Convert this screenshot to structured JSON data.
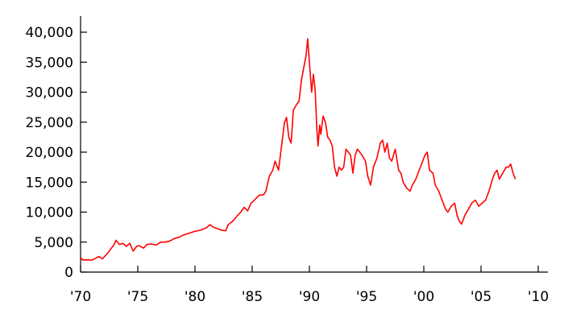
{
  "chart_data": {
    "type": "line",
    "title": "",
    "xlabel": "",
    "ylabel": "",
    "xlim": [
      1970,
      2010
    ],
    "ylim": [
      0,
      40000
    ],
    "grid": false,
    "legend": "none",
    "colors": {
      "series": "#ff0000",
      "axis": "#000000"
    },
    "x_ticks": [
      {
        "value": 1970,
        "label": "'70"
      },
      {
        "value": 1975,
        "label": "'75"
      },
      {
        "value": 1980,
        "label": "'80"
      },
      {
        "value": 1985,
        "label": "'85"
      },
      {
        "value": 1990,
        "label": "'90"
      },
      {
        "value": 1995,
        "label": "'95"
      },
      {
        "value": 2000,
        "label": "'00"
      },
      {
        "value": 2005,
        "label": "'05"
      },
      {
        "value": 2010,
        "label": "'10"
      }
    ],
    "y_ticks": [
      {
        "value": 0,
        "label": "0"
      },
      {
        "value": 5000,
        "label": "5,000"
      },
      {
        "value": 10000,
        "label": "10,000"
      },
      {
        "value": 15000,
        "label": "15,000"
      },
      {
        "value": 20000,
        "label": "20,000"
      },
      {
        "value": 25000,
        "label": "25,000"
      },
      {
        "value": 30000,
        "label": "30,000"
      },
      {
        "value": 35000,
        "label": "35,000"
      },
      {
        "value": 40000,
        "label": "40,000"
      }
    ],
    "series": [
      {
        "x": [
          1970.0,
          1970.2,
          1970.5,
          1971.0,
          1971.3,
          1971.6,
          1971.9,
          1972.3,
          1972.7,
          1972.9,
          1973.1,
          1973.4,
          1973.7,
          1974.0,
          1974.3,
          1974.6,
          1974.9,
          1975.1,
          1975.5,
          1975.8,
          1976.2,
          1976.6,
          1977.0,
          1977.4,
          1977.8,
          1978.2,
          1978.6,
          1979.0,
          1979.5,
          1980.0,
          1980.5,
          1981.0,
          1981.3,
          1981.6,
          1981.9,
          1982.3,
          1982.7,
          1982.9,
          1983.3,
          1983.7,
          1984.0,
          1984.3,
          1984.6,
          1984.9,
          1985.2,
          1985.6,
          1986.0,
          1986.2,
          1986.5,
          1986.8,
          1987.0,
          1987.3,
          1987.5,
          1987.7,
          1987.8,
          1988.0,
          1988.2,
          1988.4,
          1988.6,
          1988.9,
          1989.1,
          1989.3,
          1989.5,
          1989.7,
          1989.85,
          1990.0,
          1990.2,
          1990.35,
          1990.5,
          1990.65,
          1990.75,
          1990.9,
          1991.0,
          1991.2,
          1991.4,
          1991.6,
          1991.8,
          1992.0,
          1992.2,
          1992.4,
          1992.6,
          1992.8,
          1993.0,
          1993.2,
          1993.4,
          1993.6,
          1993.8,
          1994.0,
          1994.2,
          1994.4,
          1994.6,
          1994.9,
          1995.1,
          1995.35,
          1995.6,
          1995.9,
          1996.2,
          1996.4,
          1996.6,
          1996.8,
          1997.0,
          1997.2,
          1997.5,
          1997.8,
          1998.0,
          1998.2,
          1998.5,
          1998.8,
          1999.0,
          1999.3,
          1999.6,
          1999.9,
          2000.1,
          2000.3,
          2000.5,
          2000.8,
          2001.0,
          2001.3,
          2001.6,
          2001.9,
          2002.1,
          2002.4,
          2002.7,
          2002.9,
          2003.1,
          2003.3,
          2003.6,
          2003.9,
          2004.2,
          2004.5,
          2004.8,
          2005.1,
          2005.4,
          2005.7,
          2006.0,
          2006.2,
          2006.4,
          2006.6,
          2006.9,
          2007.2,
          2007.4,
          2007.6,
          2007.8,
          2008.0
        ],
        "y": [
          2400,
          2000,
          2050,
          2000,
          2300,
          2600,
          2200,
          3000,
          4000,
          4500,
          5300,
          4600,
          4800,
          4300,
          4800,
          3500,
          4300,
          4400,
          4000,
          4600,
          4700,
          4500,
          5000,
          5000,
          5200,
          5600,
          5800,
          6200,
          6500,
          6800,
          7000,
          7400,
          7900,
          7500,
          7300,
          7000,
          6900,
          7900,
          8500,
          9400,
          10000,
          10800,
          10200,
          11500,
          12000,
          12800,
          12900,
          13500,
          16000,
          17000,
          18500,
          17000,
          20000,
          23000,
          24800,
          25800,
          22500,
          21500,
          27000,
          28000,
          28500,
          32000,
          34000,
          36000,
          38900,
          35000,
          30000,
          33000,
          30500,
          24000,
          21000,
          24500,
          23000,
          26000,
          25000,
          22500,
          22000,
          21000,
          17500,
          16000,
          17500,
          17000,
          17500,
          20500,
          20000,
          19500,
          16500,
          19500,
          20500,
          20000,
          19500,
          18500,
          16000,
          14500,
          17500,
          19000,
          21500,
          22000,
          20000,
          21500,
          19000,
          18500,
          20500,
          17000,
          16500,
          15000,
          14000,
          13500,
          14500,
          15500,
          17000,
          18500,
          19500,
          20000,
          17000,
          16500,
          14500,
          13500,
          12000,
          10500,
          10000,
          11000,
          11500,
          9500,
          8500,
          8000,
          9500,
          10500,
          11500,
          12000,
          11000,
          11500,
          12000,
          13500,
          15500,
          16500,
          17000,
          15500,
          16500,
          17500,
          17500,
          18000,
          16500,
          15500
        ]
      }
    ]
  }
}
